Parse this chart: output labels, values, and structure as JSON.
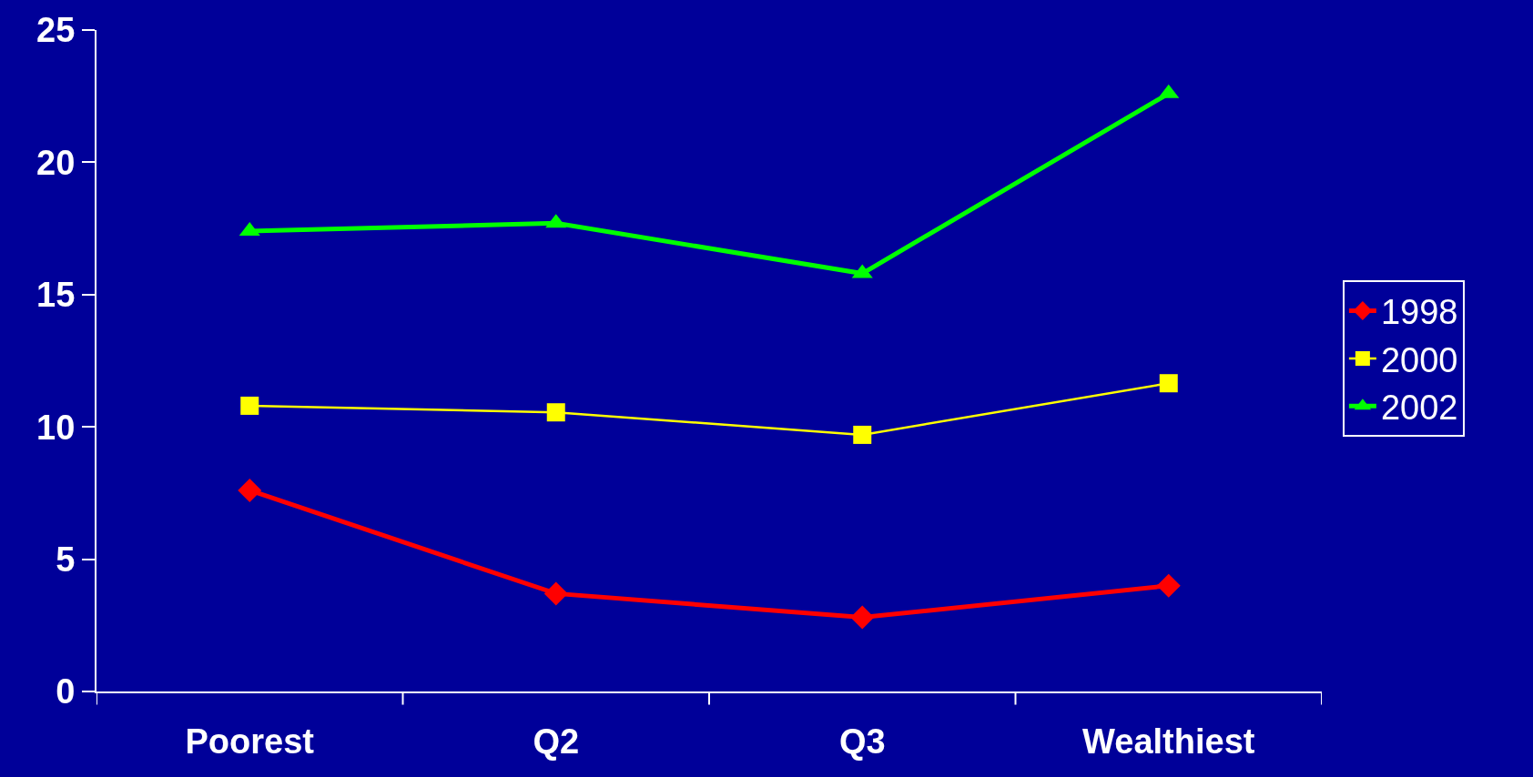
{
  "chart_data": {
    "type": "line",
    "categories": [
      "Poorest",
      "Q2",
      "Q3",
      "Wealthiest"
    ],
    "series": [
      {
        "name": "1998",
        "color": "#ff0000",
        "marker": "diamond",
        "values": [
          7.6,
          3.7,
          2.8,
          4.0
        ]
      },
      {
        "name": "2000",
        "color": "#ffff00",
        "marker": "square",
        "values": [
          10.8,
          10.55,
          9.7,
          11.65
        ]
      },
      {
        "name": "2002",
        "color": "#00ff00",
        "marker": "triangle",
        "values": [
          17.4,
          17.7,
          15.8,
          22.6
        ]
      }
    ],
    "ylim": [
      0,
      25
    ],
    "yticks": [
      0,
      5,
      10,
      15,
      20,
      25
    ],
    "grid": false,
    "legend": "right",
    "line_style": "solid"
  }
}
